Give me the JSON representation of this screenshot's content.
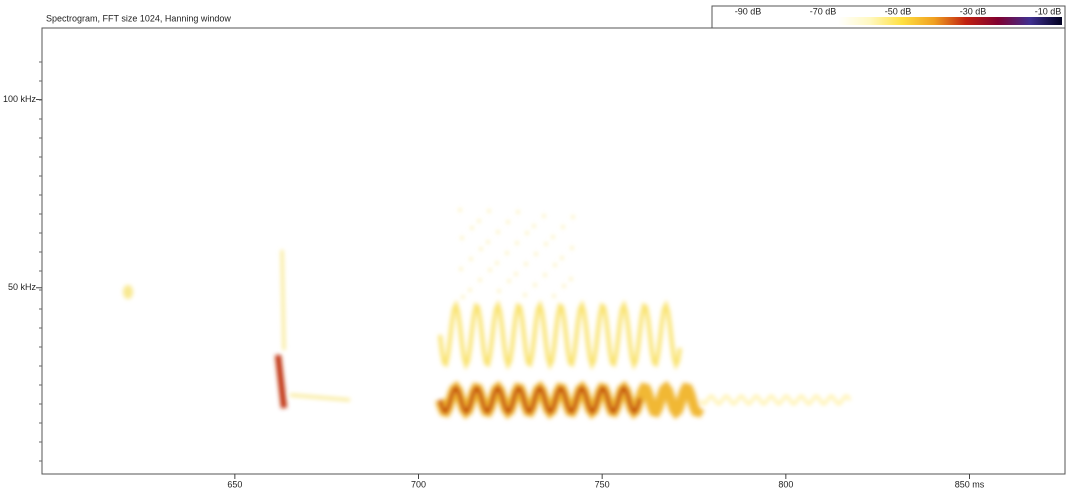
{
  "chart_data": {
    "type": "spectrogram",
    "title": "Spectrogram, FFT size 1024, Hanning window",
    "xlim": [
      597.5,
      876
    ],
    "xticks": [
      650,
      700,
      750,
      {
        "value": 800,
        "label": "800"
      },
      {
        "value": 850,
        "label": "850 ms"
      }
    ],
    "ylim": [
      0,
      119
    ],
    "yticks": [
      {
        "value": 50,
        "label": "50 kHz"
      },
      {
        "value": 100,
        "label": "100 kHz"
      }
    ],
    "colorbar": {
      "labels": [
        "-90 dB",
        "-70 dB",
        "-50 dB",
        "-30 dB",
        "-10 dB"
      ],
      "colors": [
        "#ffffff",
        "#fff8c0",
        "#ffe040",
        "#f0a020",
        "#c02010",
        "#800030",
        "#403090",
        "#000020"
      ]
    }
  }
}
